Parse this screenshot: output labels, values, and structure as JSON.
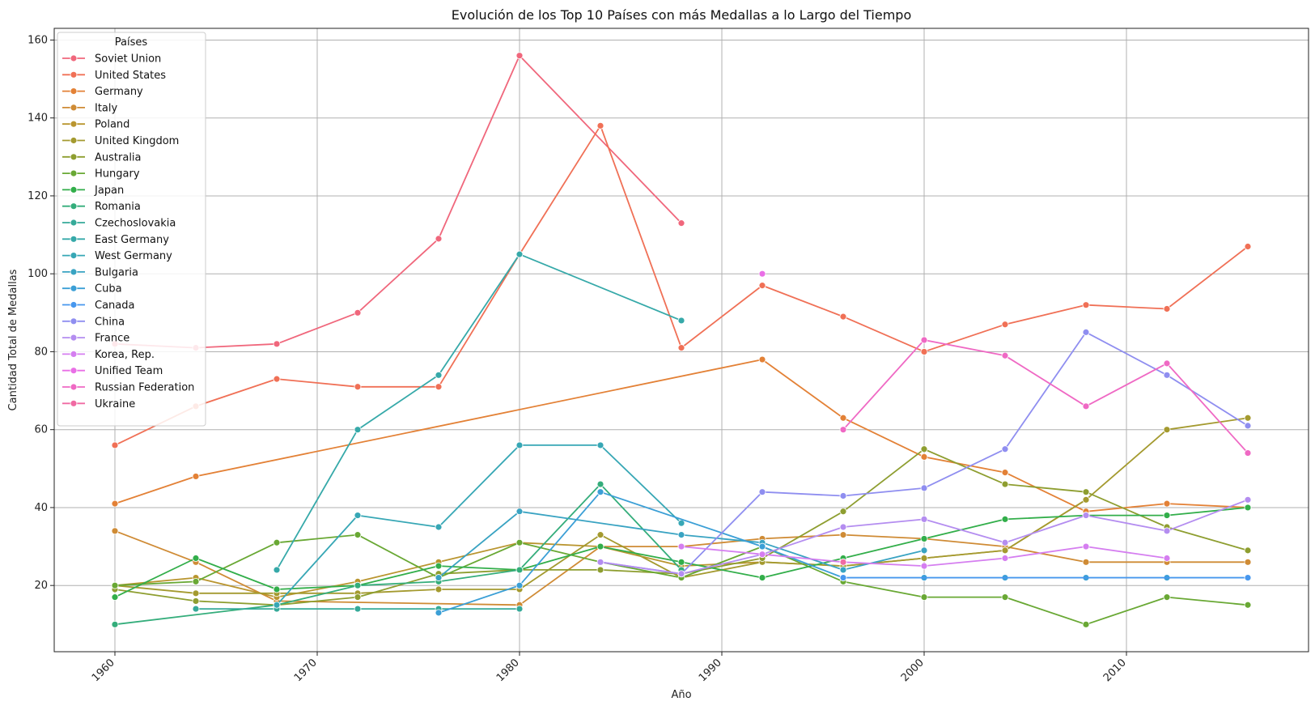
{
  "chart_data": {
    "type": "line",
    "title": "Evolución de los Top 10 Países con más Medallas a lo Largo del Tiempo",
    "xlabel": "Año",
    "ylabel": "Cantidad Total de Medallas",
    "xlim": [
      1957,
      2019
    ],
    "ylim": [
      3,
      163
    ],
    "xticks": [
      1960,
      1970,
      1980,
      1990,
      2000,
      2010
    ],
    "yticks": [
      20,
      40,
      60,
      80,
      100,
      120,
      140,
      160
    ],
    "grid": true,
    "legend": {
      "title": "Países",
      "placement": "top-left"
    },
    "series": [
      {
        "name": "Soviet Union",
        "color": "#f0677c",
        "points": [
          [
            1960,
            82
          ],
          [
            1964,
            81
          ],
          [
            1968,
            82
          ],
          [
            1972,
            90
          ],
          [
            1976,
            109
          ],
          [
            1980,
            156
          ],
          [
            1988,
            113
          ]
        ]
      },
      {
        "name": "United States",
        "color": "#f07056",
        "points": [
          [
            1960,
            56
          ],
          [
            1964,
            66
          ],
          [
            1968,
            73
          ],
          [
            1972,
            71
          ],
          [
            1976,
            71
          ],
          [
            1980,
            105
          ],
          [
            1984,
            138
          ],
          [
            1988,
            81
          ],
          [
            1992,
            97
          ],
          [
            1996,
            89
          ],
          [
            2000,
            80
          ],
          [
            2004,
            87
          ],
          [
            2008,
            92
          ],
          [
            2012,
            91
          ],
          [
            2016,
            107
          ]
        ]
      },
      {
        "name": "Germany",
        "color": "#e38136",
        "points": [
          [
            1960,
            41
          ],
          [
            1964,
            48
          ],
          [
            1992,
            78
          ],
          [
            1996,
            63
          ],
          [
            2000,
            53
          ],
          [
            2004,
            49
          ],
          [
            2008,
            39
          ],
          [
            2012,
            41
          ],
          [
            2016,
            40
          ]
        ]
      },
      {
        "name": "Italy",
        "color": "#cf8b35",
        "points": [
          [
            1960,
            34
          ],
          [
            1964,
            26
          ],
          [
            1968,
            16
          ],
          [
            1980,
            15
          ],
          [
            1984,
            30
          ],
          [
            1988,
            30
          ],
          [
            1992,
            32
          ],
          [
            1996,
            33
          ],
          [
            2000,
            32
          ],
          [
            2004,
            30
          ],
          [
            2008,
            26
          ],
          [
            2012,
            26
          ],
          [
            2016,
            26
          ]
        ]
      },
      {
        "name": "Poland",
        "color": "#b9952f",
        "points": [
          [
            1960,
            20
          ],
          [
            1964,
            22
          ],
          [
            1968,
            17
          ],
          [
            1972,
            21
          ],
          [
            1976,
            26
          ],
          [
            1980,
            31
          ],
          [
            1984,
            30
          ],
          [
            1988,
            25
          ],
          [
            1992,
            26
          ],
          [
            1996,
            25
          ],
          [
            2000,
            27
          ],
          [
            2004,
            29
          ],
          [
            2008,
            42
          ]
        ]
      },
      {
        "name": "United Kingdom",
        "color": "#a49a2f",
        "points": [
          [
            1960,
            20
          ],
          [
            1964,
            18
          ],
          [
            1968,
            18
          ],
          [
            1972,
            18
          ],
          [
            1976,
            19
          ],
          [
            1980,
            19
          ],
          [
            1984,
            33
          ],
          [
            1988,
            22
          ],
          [
            1992,
            26
          ],
          [
            1996,
            25
          ],
          [
            2000,
            27
          ],
          [
            2004,
            29
          ],
          [
            2008,
            42
          ],
          [
            2012,
            60
          ],
          [
            2016,
            63
          ]
        ]
      },
      {
        "name": "Australia",
        "color": "#8e9e30",
        "points": [
          [
            1960,
            19
          ],
          [
            1964,
            16
          ],
          [
            1968,
            15
          ],
          [
            1972,
            17
          ],
          [
            1976,
            23
          ],
          [
            1980,
            24
          ],
          [
            1984,
            24
          ],
          [
            1988,
            23
          ],
          [
            1992,
            27
          ],
          [
            1996,
            39
          ],
          [
            2000,
            55
          ],
          [
            2004,
            46
          ],
          [
            2008,
            44
          ],
          [
            2012,
            35
          ],
          [
            2016,
            29
          ]
        ]
      },
      {
        "name": "Hungary",
        "color": "#69a834",
        "points": [
          [
            1960,
            20
          ],
          [
            1964,
            21
          ],
          [
            1968,
            31
          ],
          [
            1972,
            33
          ],
          [
            1976,
            22
          ],
          [
            1980,
            31
          ],
          [
            1984,
            26
          ],
          [
            1988,
            22
          ],
          [
            1992,
            30
          ],
          [
            1996,
            21
          ],
          [
            2000,
            17
          ],
          [
            2004,
            17
          ],
          [
            2008,
            10
          ],
          [
            2012,
            17
          ],
          [
            2016,
            15
          ]
        ]
      },
      {
        "name": "Japan",
        "color": "#32ae4a",
        "points": [
          [
            1960,
            17
          ],
          [
            1964,
            27
          ],
          [
            1968,
            19
          ],
          [
            1972,
            20
          ],
          [
            1976,
            25
          ],
          [
            1980,
            24
          ],
          [
            1984,
            30
          ],
          [
            1988,
            26
          ],
          [
            1992,
            22
          ],
          [
            1996,
            27
          ],
          [
            2000,
            32
          ],
          [
            2004,
            37
          ],
          [
            2008,
            38
          ],
          [
            2012,
            38
          ],
          [
            2016,
            40
          ]
        ]
      },
      {
        "name": "Romania",
        "color": "#34ad7b",
        "points": [
          [
            1960,
            10
          ],
          [
            1968,
            15
          ],
          [
            1972,
            20
          ],
          [
            1976,
            21
          ],
          [
            1980,
            24
          ],
          [
            1984,
            46
          ],
          [
            1988,
            24
          ]
        ]
      },
      {
        "name": "Czechoslovakia",
        "color": "#35aa99",
        "points": [
          [
            1964,
            14
          ],
          [
            1968,
            14
          ],
          [
            1972,
            14
          ],
          [
            1976,
            14
          ],
          [
            1980,
            14
          ]
        ]
      },
      {
        "name": "East Germany",
        "color": "#36a9a9",
        "points": [
          [
            1968,
            24
          ],
          [
            1972,
            60
          ],
          [
            1976,
            74
          ],
          [
            1980,
            105
          ],
          [
            1988,
            88
          ]
        ]
      },
      {
        "name": "West Germany",
        "color": "#37a7b5",
        "points": [
          [
            1968,
            15
          ],
          [
            1972,
            38
          ],
          [
            1976,
            35
          ],
          [
            1980,
            56
          ],
          [
            1984,
            56
          ],
          [
            1988,
            36
          ]
        ]
      },
      {
        "name": "Bulgaria",
        "color": "#39a3c2",
        "points": [
          [
            1976,
            22
          ],
          [
            1980,
            39
          ],
          [
            1988,
            33
          ],
          [
            1992,
            31
          ],
          [
            1996,
            24
          ],
          [
            2000,
            29
          ]
        ]
      },
      {
        "name": "Cuba",
        "color": "#3b9fd6",
        "points": [
          [
            1976,
            13
          ],
          [
            1980,
            20
          ],
          [
            1984,
            44
          ],
          [
            1992,
            30
          ],
          [
            1996,
            22
          ],
          [
            2000,
            22
          ],
          [
            2004,
            22
          ],
          [
            2008,
            22
          ],
          [
            2012,
            22
          ],
          [
            2016,
            22
          ]
        ]
      },
      {
        "name": "Canada",
        "color": "#4797ee",
        "points": [
          [
            1996,
            22
          ],
          [
            2016,
            22
          ]
        ]
      },
      {
        "name": "China",
        "color": "#8f8ef0",
        "points": [
          [
            1984,
            26
          ],
          [
            1988,
            23
          ],
          [
            1992,
            44
          ],
          [
            1996,
            43
          ],
          [
            2000,
            45
          ],
          [
            2004,
            55
          ],
          [
            2008,
            85
          ],
          [
            2012,
            74
          ],
          [
            2016,
            61
          ]
        ]
      },
      {
        "name": "France",
        "color": "#b48df0",
        "points": [
          [
            1984,
            26
          ],
          [
            1988,
            23
          ],
          [
            1992,
            28
          ],
          [
            1996,
            35
          ],
          [
            2000,
            37
          ],
          [
            2004,
            31
          ],
          [
            2008,
            38
          ],
          [
            2012,
            34
          ],
          [
            2016,
            42
          ]
        ]
      },
      {
        "name": "Korea, Rep.",
        "color": "#d57ef0",
        "points": [
          [
            1988,
            30
          ],
          [
            1992,
            28
          ],
          [
            1996,
            26
          ],
          [
            2000,
            25
          ],
          [
            2004,
            27
          ],
          [
            2008,
            30
          ],
          [
            2012,
            27
          ]
        ]
      },
      {
        "name": "Unified Team",
        "color": "#e96fe6",
        "points": [
          [
            1992,
            100
          ]
        ]
      },
      {
        "name": "Russian Federation",
        "color": "#ef69c4",
        "points": [
          [
            1996,
            60
          ],
          [
            2000,
            83
          ],
          [
            2004,
            79
          ],
          [
            2008,
            66
          ],
          [
            2012,
            77
          ],
          [
            2016,
            54
          ]
        ]
      },
      {
        "name": "Ukraine",
        "color": "#f06aa3",
        "points": [
          [
            1996,
            26
          ]
        ]
      }
    ]
  }
}
